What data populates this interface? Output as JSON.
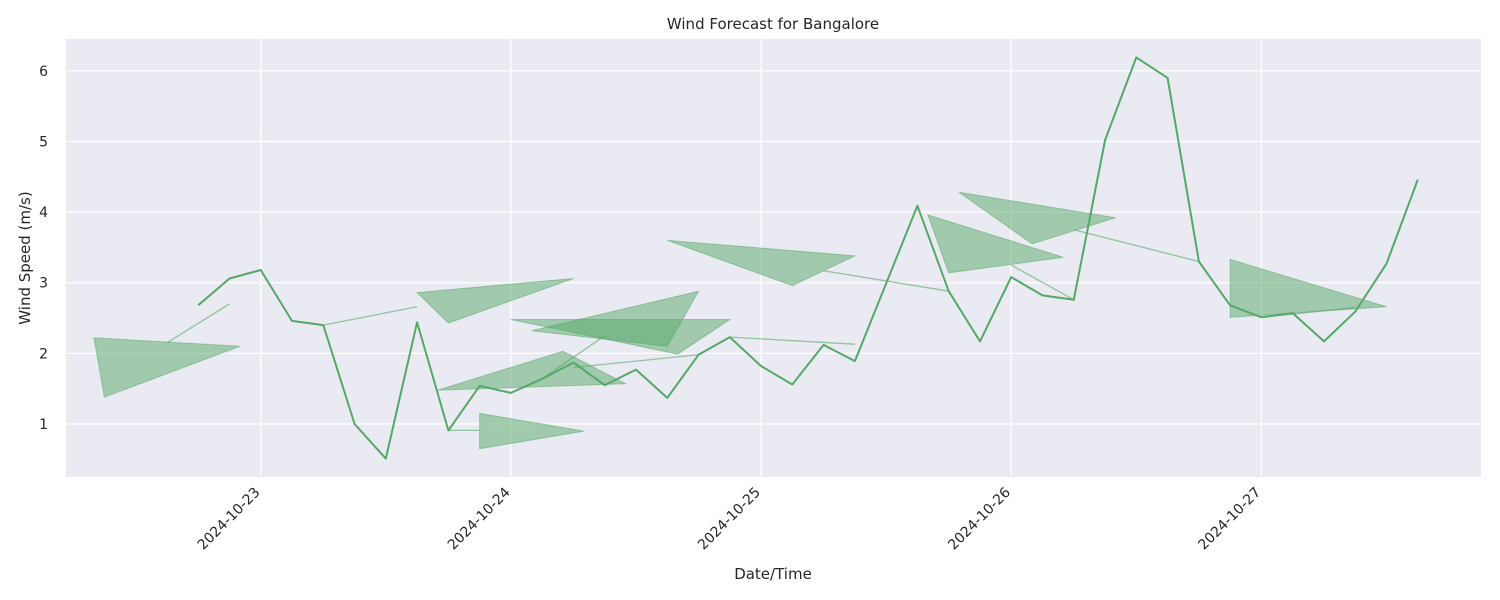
{
  "chart_data": {
    "type": "line",
    "title": "Wind Forecast for Bangalore",
    "xlabel": "Date/Time",
    "ylabel": "Wind Speed (m/s)",
    "x_tick_labels": [
      "2024-10-23",
      "2024-10-24",
      "2024-10-25",
      "2024-10-26",
      "2024-10-27"
    ],
    "y_ticks": [
      1,
      2,
      3,
      4,
      5,
      6
    ],
    "xlim": [
      "2024-10-22T05:19",
      "2024-10-27T21:04"
    ],
    "ylim": [
      0.25,
      6.45
    ],
    "grid": true,
    "series": [
      {
        "color": "#55a868",
        "points": [
          {
            "t": "2024-10-22T18:00",
            "v": 2.68
          },
          {
            "t": "2024-10-22T21:00",
            "v": 3.06
          },
          {
            "t": "2024-10-23T00:00",
            "v": 3.18
          },
          {
            "t": "2024-10-23T03:00",
            "v": 2.46
          },
          {
            "t": "2024-10-23T06:00",
            "v": 2.4
          },
          {
            "t": "2024-10-23T09:00",
            "v": 1.0
          },
          {
            "t": "2024-10-23T12:00",
            "v": 0.51
          },
          {
            "t": "2024-10-23T15:00",
            "v": 2.44
          },
          {
            "t": "2024-10-23T18:00",
            "v": 0.91
          },
          {
            "t": "2024-10-23T21:00",
            "v": 1.54
          },
          {
            "t": "2024-10-24T00:00",
            "v": 1.44
          },
          {
            "t": "2024-10-24T03:00",
            "v": 1.64
          },
          {
            "t": "2024-10-24T06:00",
            "v": 1.87
          },
          {
            "t": "2024-10-24T09:00",
            "v": 1.55
          },
          {
            "t": "2024-10-24T12:00",
            "v": 1.77
          },
          {
            "t": "2024-10-24T15:00",
            "v": 1.37
          },
          {
            "t": "2024-10-24T18:00",
            "v": 1.98
          },
          {
            "t": "2024-10-24T21:00",
            "v": 2.23
          },
          {
            "t": "2024-10-25T00:00",
            "v": 1.82
          },
          {
            "t": "2024-10-25T03:00",
            "v": 1.56
          },
          {
            "t": "2024-10-25T06:00",
            "v": 2.12
          },
          {
            "t": "2024-10-25T09:00",
            "v": 1.89
          },
          {
            "t": "2024-10-25T12:00",
            "v": 2.99
          },
          {
            "t": "2024-10-25T15:00",
            "v": 4.09
          },
          {
            "t": "2024-10-25T18:00",
            "v": 2.88
          },
          {
            "t": "2024-10-25T21:00",
            "v": 2.17
          },
          {
            "t": "2024-10-26T00:00",
            "v": 3.08
          },
          {
            "t": "2024-10-26T03:00",
            "v": 2.82
          },
          {
            "t": "2024-10-26T06:00",
            "v": 2.76
          },
          {
            "t": "2024-10-26T09:00",
            "v": 5.02
          },
          {
            "t": "2024-10-26T12:00",
            "v": 6.19
          },
          {
            "t": "2024-10-26T15:00",
            "v": 5.9
          },
          {
            "t": "2024-10-26T18:00",
            "v": 3.3
          },
          {
            "t": "2024-10-26T21:00",
            "v": 2.68
          },
          {
            "t": "2024-10-27T00:00",
            "v": 2.51
          },
          {
            "t": "2024-10-27T03:00",
            "v": 2.57
          },
          {
            "t": "2024-10-27T06:00",
            "v": 2.17
          },
          {
            "t": "2024-10-27T09:00",
            "v": 2.59
          },
          {
            "t": "2024-10-27T12:00",
            "v": 3.27
          },
          {
            "t": "2024-10-27T15:00",
            "v": 4.46
          }
        ]
      }
    ],
    "wind_direction_arrows": [
      {
        "from": {
          "t": "2024-10-22T15:00",
          "v": 2.15
        },
        "tail": {
          "t": "2024-10-22T21:00",
          "v": 2.7
        },
        "tip": {
          "t": "2024-10-22T09:00",
          "v": 1.38
        },
        "base_a": {
          "t": "2024-10-22T08:00",
          "v": 2.22
        },
        "base_b": {
          "t": "2024-10-22T22:00",
          "v": 2.1
        }
      },
      {
        "from": {
          "t": "2024-10-23T06:00",
          "v": 2.4
        },
        "tail": {
          "t": "2024-10-23T15:00",
          "v": 2.66
        },
        "tip": {
          "t": "2024-10-23T18:00",
          "v": 2.43
        },
        "base_a": {
          "t": "2024-10-23T15:00",
          "v": 2.86
        },
        "base_b": {
          "t": "2024-10-24T06:00",
          "v": 3.06
        }
      },
      {
        "from": {
          "t": "2024-10-23T18:00",
          "v": 0.91
        },
        "tail": {
          "t": "2024-10-23T21:00",
          "v": 0.91
        },
        "tip": {
          "t": "2024-10-24T07:00",
          "v": 0.9
        },
        "base_a": {
          "t": "2024-10-23T21:00",
          "v": 1.15
        },
        "base_b": {
          "t": "2024-10-23T21:00",
          "v": 0.65
        }
      },
      {
        "from": {
          "t": "2024-10-24T06:00",
          "v": 1.8
        },
        "tail": {
          "t": "2024-10-24T18:00",
          "v": 1.98
        },
        "tip": {
          "t": "2024-10-23T17:00",
          "v": 1.48
        },
        "base_a": {
          "t": "2024-10-24T05:00",
          "v": 2.03
        },
        "base_b": {
          "t": "2024-10-24T11:00",
          "v": 1.57
        }
      },
      {
        "from": {
          "t": "2024-10-24T03:00",
          "v": 1.64
        },
        "tail": {
          "t": "2024-10-24T09:00",
          "v": 2.25
        },
        "tip": {
          "t": "2024-10-24T18:00",
          "v": 2.88
        },
        "base_a": {
          "t": "2024-10-24T02:00",
          "v": 2.32
        },
        "base_b": {
          "t": "2024-10-24T15:00",
          "v": 2.1
        }
      },
      {
        "from": {
          "t": "2024-10-24T21:00",
          "v": 2.23
        },
        "tail": {
          "t": "2024-10-25T09:00",
          "v": 2.13
        },
        "tip": {
          "t": "2024-10-24T00:00",
          "v": 2.48
        },
        "base_a": {
          "t": "2024-10-24T21:00",
          "v": 2.48
        },
        "base_b": {
          "t": "2024-10-24T16:00",
          "v": 1.99
        }
      },
      {
        "from": {
          "t": "2024-10-25T18:00",
          "v": 2.88
        },
        "tail": {
          "t": "2024-10-25T06:00",
          "v": 3.17
        },
        "tip": {
          "t": "2024-10-24T15:00",
          "v": 3.6
        },
        "base_a": {
          "t": "2024-10-25T09:00",
          "v": 3.38
        },
        "base_b": {
          "t": "2024-10-25T03:00",
          "v": 2.96
        }
      },
      {
        "from": {
          "t": "2024-10-26T06:00",
          "v": 2.76
        },
        "tail": {
          "t": "2024-10-26T00:00",
          "v": 3.25
        },
        "tip": {
          "t": "2024-10-25T16:00",
          "v": 3.96
        },
        "base_a": {
          "t": "2024-10-26T05:00",
          "v": 3.36
        },
        "base_b": {
          "t": "2024-10-25T18:00",
          "v": 3.14
        }
      },
      {
        "from": {
          "t": "2024-10-26T18:00",
          "v": 3.3
        },
        "tail": {
          "t": "2024-10-26T06:00",
          "v": 3.75
        },
        "tip": {
          "t": "2024-10-25T19:00",
          "v": 4.28
        },
        "base_a": {
          "t": "2024-10-26T10:00",
          "v": 3.92
        },
        "base_b": {
          "t": "2024-10-26T02:00",
          "v": 3.55
        }
      },
      {
        "from": {
          "t": "2024-10-27T00:00",
          "v": 2.51
        },
        "tail": {
          "t": "2024-10-27T09:00",
          "v": 2.65
        },
        "tip": {
          "t": "2024-10-26T21:00",
          "v": 3.33
        },
        "base_a": {
          "t": "2024-10-27T12:00",
          "v": 2.66
        },
        "base_b": {
          "t": "2024-10-26T21:00",
          "v": 2.51
        }
      }
    ]
  }
}
